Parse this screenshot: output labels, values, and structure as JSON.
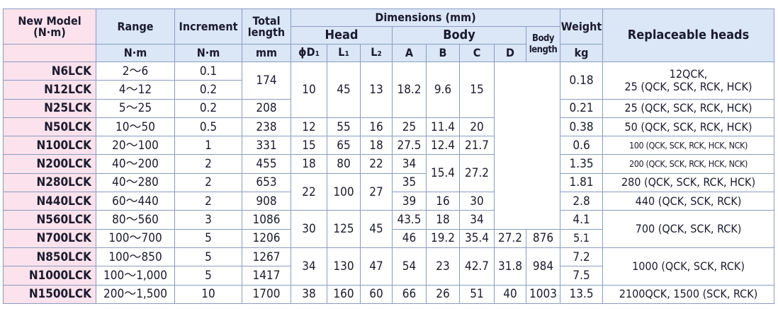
{
  "header": {
    "model": "New Model\n(N·m)",
    "range": "Range",
    "increment": "Increment",
    "total_length": "Total\nlength",
    "dimensions": "Dimensions (mm)",
    "head": "Head",
    "body": "Body",
    "body_length": "Body\nlength",
    "weight": "Weight",
    "replaceable_heads": "Replaceable heads",
    "units": {
      "range": "N·m",
      "increment": "N·m",
      "total_length": "mm",
      "d1": {
        "text": "ϕD",
        "sub": "1"
      },
      "l1": {
        "text": "L",
        "sub": "1"
      },
      "l2": {
        "text": "L",
        "sub": "2"
      },
      "a": "A",
      "b": "B",
      "c": "C",
      "d": "D",
      "weight": "kg"
    }
  },
  "table": {
    "rows": [
      [
        "N6LCK",
        "2～6",
        "0.1",
        "174",
        "10",
        "45",
        "13",
        "18.2",
        "9.6",
        "15",
        "0.18",
        "12QCK,\n25 (QCK, SCK, RCK, HCK)"
      ],
      [
        "N12LCK",
        "4～12",
        "0.2"
      ],
      [
        "N25LCK",
        "5～25",
        "0.2",
        "208",
        "0.21",
        "25 (QCK, SCK, RCK, HCK)"
      ],
      [
        "N50LCK",
        "10～50",
        "0.5",
        "238",
        "12",
        "55",
        "16",
        "25",
        "11.4",
        "20",
        "0.38",
        "50 (QCK, SCK, RCK, HCK)"
      ],
      [
        "N100LCK",
        "20～100",
        "1",
        "331",
        "15",
        "65",
        "18",
        "27.5",
        "12.4",
        "21.7",
        "0.6",
        "100 (QCK, SCK, RCK, HCK, NCK)"
      ],
      [
        "N200LCK",
        "40～200",
        "2",
        "455",
        "18",
        "80",
        "22",
        "34",
        "15.4",
        "27.2",
        "1.35",
        "200 (QCK, SCK, RCK, HCK, NCK)"
      ],
      [
        "N280LCK",
        "40～280",
        "2",
        "653",
        "22",
        "100",
        "27",
        "35",
        "1.81",
        "280 (QCK, SCK, RCK, HCK)"
      ],
      [
        "N440LCK",
        "60～440",
        "2",
        "908",
        "39",
        "16",
        "30",
        "2.8",
        "440 (QCK, SCK, RCK)"
      ],
      [
        "N560LCK",
        "80～560",
        "3",
        "1086",
        "30",
        "125",
        "45",
        "43.5",
        "18",
        "34",
        "4.1",
        "700 (QCK, SCK, RCK)"
      ],
      [
        "N700LCK",
        "100～700",
        "5",
        "1206",
        "46",
        "19.2",
        "35.4",
        "27.2",
        "876",
        "5.1"
      ],
      [
        "N850LCK",
        "100～850",
        "5",
        "1267",
        "34",
        "130",
        "47",
        "54",
        "23",
        "42.7",
        "31.8",
        "984",
        "7.2",
        "1000 (QCK, SCK, RCK)"
      ],
      [
        "N1000LCK",
        "100～1,000",
        "5",
        "1417",
        "7.5"
      ],
      [
        "N1500LCK",
        "200～1,500",
        "10",
        "1700",
        "38",
        "160",
        "60",
        "66",
        "26",
        "51",
        "40",
        "1003",
        "13.5",
        "2100QCK, 1500 (SCK, RCK)"
      ]
    ]
  }
}
